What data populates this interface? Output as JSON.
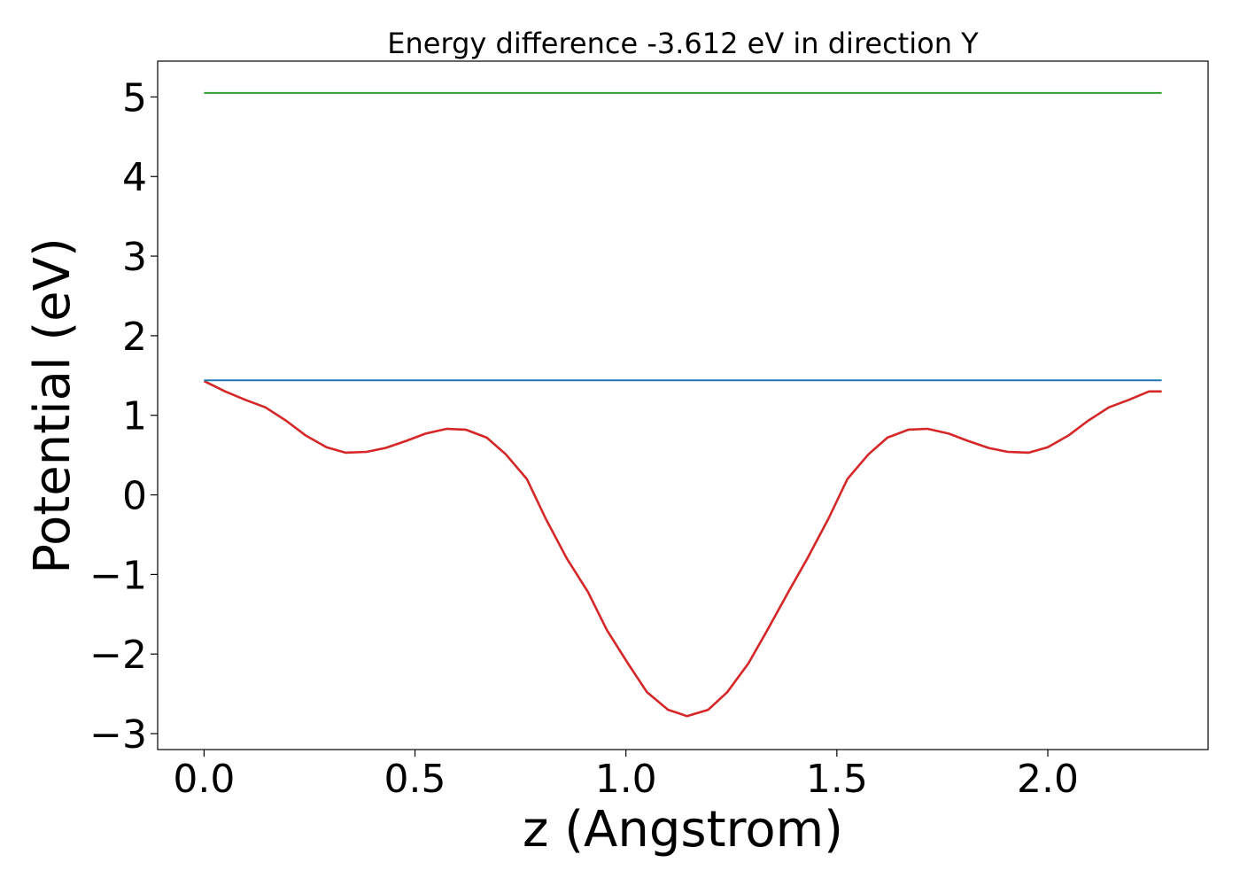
{
  "chart_data": {
    "type": "line",
    "title": "Energy difference -3.612 eV in direction Y",
    "xlabel": "z (Angstrom)",
    "ylabel": "Potential (eV)",
    "xlim": [
      -0.11,
      2.38
    ],
    "ylim": [
      -3.2,
      5.45
    ],
    "xticks": [
      0.0,
      0.5,
      1.0,
      1.5,
      2.0
    ],
    "xtick_labels": [
      "0.0",
      "0.5",
      "1.0",
      "1.5",
      "2.0"
    ],
    "yticks": [
      -3,
      -2,
      -1,
      0,
      1,
      2,
      3,
      4,
      5
    ],
    "ytick_labels": [
      "−3",
      "−2",
      "−1",
      "0",
      "1",
      "2",
      "3",
      "4",
      "5"
    ],
    "grid": false,
    "series": [
      {
        "color": "#d62728",
        "x": [
          0.0,
          0.05,
          0.1,
          0.145,
          0.195,
          0.24,
          0.29,
          0.335,
          0.385,
          0.43,
          0.48,
          0.525,
          0.575,
          0.62,
          0.67,
          0.715,
          0.765,
          0.81,
          0.86,
          0.91,
          0.955,
          1.005,
          1.05,
          1.1,
          1.145,
          1.195,
          1.24,
          1.29,
          1.335,
          1.385,
          1.43,
          1.48,
          1.525,
          1.575,
          1.62,
          1.67,
          1.715,
          1.765,
          1.81,
          1.86,
          1.905,
          1.955,
          2.0,
          2.05,
          2.095,
          2.145,
          2.19,
          2.24,
          2.27
        ],
        "y": [
          1.43,
          1.3,
          1.19,
          1.1,
          0.93,
          0.75,
          0.6,
          0.53,
          0.54,
          0.59,
          0.68,
          0.77,
          0.83,
          0.82,
          0.72,
          0.51,
          0.2,
          -0.3,
          -0.8,
          -1.22,
          -1.7,
          -2.12,
          -2.48,
          -2.7,
          -2.78,
          -2.7,
          -2.48,
          -2.12,
          -1.7,
          -1.22,
          -0.8,
          -0.3,
          0.2,
          0.51,
          0.72,
          0.82,
          0.83,
          0.77,
          0.68,
          0.59,
          0.54,
          0.53,
          0.6,
          0.75,
          0.93,
          1.1,
          1.19,
          1.3,
          1.3
        ]
      },
      {
        "color": "#1f77b4",
        "x": [
          0.0,
          2.27
        ],
        "y": [
          1.44,
          1.44
        ]
      },
      {
        "color": "#2ca02c",
        "x": [
          0.0,
          2.27
        ],
        "y": [
          5.05,
          5.05
        ]
      }
    ]
  }
}
